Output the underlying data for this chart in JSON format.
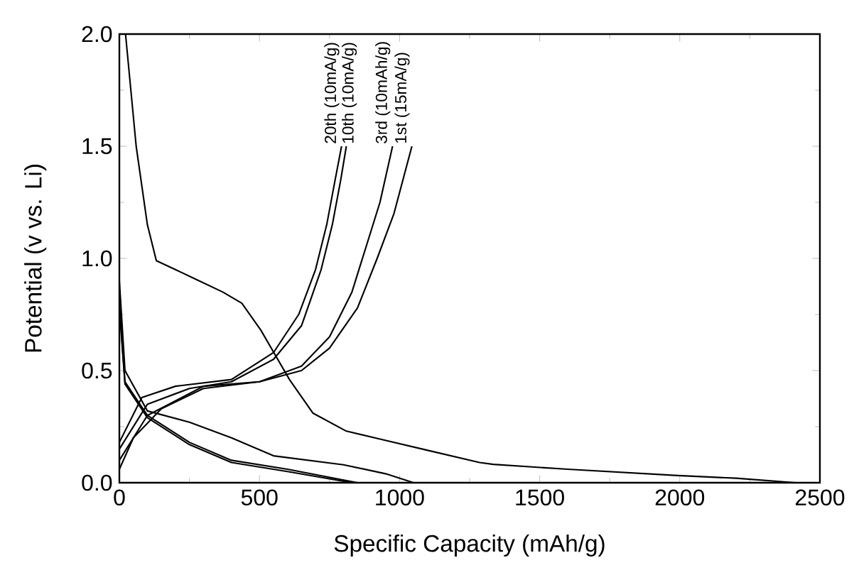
{
  "chart_data": {
    "type": "line",
    "xlabel": "Specific Capacity (mAh/g)",
    "ylabel": "Potential (v vs. Li)",
    "xlim": [
      0,
      2500
    ],
    "ylim": [
      0,
      2.0
    ],
    "xticks": [
      0,
      500,
      1000,
      1500,
      2000,
      2500
    ],
    "yticks": [
      {
        "value": 0,
        "label": "0.0"
      },
      {
        "value": 0.5,
        "label": "0.5"
      },
      {
        "value": 1.0,
        "label": "1.0"
      },
      {
        "value": 1.5,
        "label": "1.5"
      },
      {
        "value": 2.0,
        "label": "2.0"
      }
    ],
    "grid": false,
    "marker": "none",
    "series": [
      {
        "color": "#000000",
        "x": [
          22,
          60,
          100,
          132,
          200,
          268,
          369,
          437,
          505,
          607,
          691,
          810,
          946,
          1095,
          1285,
          1334,
          1600,
          1993,
          2200,
          2414
        ],
        "values": [
          2.0,
          1.5,
          1.15,
          0.99,
          0.95,
          0.91,
          0.85,
          0.8,
          0.68,
          0.46,
          0.31,
          0.23,
          0.19,
          0.146,
          0.09,
          0.082,
          0.06,
          0.032,
          0.02,
          0.0
        ]
      },
      {
        "name": "1st (15mA/g)",
        "color": "#000000",
        "x": [
          0,
          50,
          150,
          300,
          500,
          650,
          750,
          850,
          920,
          980,
          1044
        ],
        "values": [
          0.06,
          0.2,
          0.33,
          0.42,
          0.45,
          0.5,
          0.6,
          0.78,
          1.0,
          1.2,
          1.5
        ]
      },
      {
        "color": "#000000",
        "x": [
          0,
          20,
          100,
          250,
          400,
          550,
          800,
          950,
          1050
        ],
        "values": [
          0.9,
          0.5,
          0.32,
          0.27,
          0.2,
          0.12,
          0.08,
          0.04,
          0.0
        ]
      },
      {
        "name": "3rd (10mAh/g)",
        "color": "#000000",
        "x": [
          0,
          100,
          300,
          500,
          650,
          750,
          830,
          880,
          930,
          975
        ],
        "values": [
          0.1,
          0.3,
          0.43,
          0.45,
          0.52,
          0.65,
          0.85,
          1.05,
          1.25,
          1.5
        ]
      },
      {
        "color": "#000000",
        "x": [
          0,
          20,
          100,
          250,
          400,
          600,
          850
        ],
        "values": [
          0.8,
          0.45,
          0.3,
          0.18,
          0.1,
          0.06,
          0.0
        ]
      },
      {
        "name": "10th (10mA/g)",
        "color": "#000000",
        "x": [
          0,
          100,
          250,
          400,
          550,
          650,
          720,
          760,
          790,
          810
        ],
        "values": [
          0.15,
          0.35,
          0.42,
          0.45,
          0.55,
          0.7,
          0.95,
          1.15,
          1.35,
          1.5
        ]
      },
      {
        "color": "#000000",
        "x": [
          0,
          20,
          100,
          250,
          400,
          600,
          830
        ],
        "values": [
          0.78,
          0.44,
          0.29,
          0.17,
          0.09,
          0.05,
          0.0
        ]
      },
      {
        "name": "20th (10mA/g)",
        "color": "#000000",
        "x": [
          0,
          80,
          200,
          400,
          550,
          640,
          700,
          740,
          770,
          793
        ],
        "values": [
          0.18,
          0.38,
          0.43,
          0.46,
          0.58,
          0.75,
          0.95,
          1.15,
          1.35,
          1.5
        ]
      }
    ]
  }
}
